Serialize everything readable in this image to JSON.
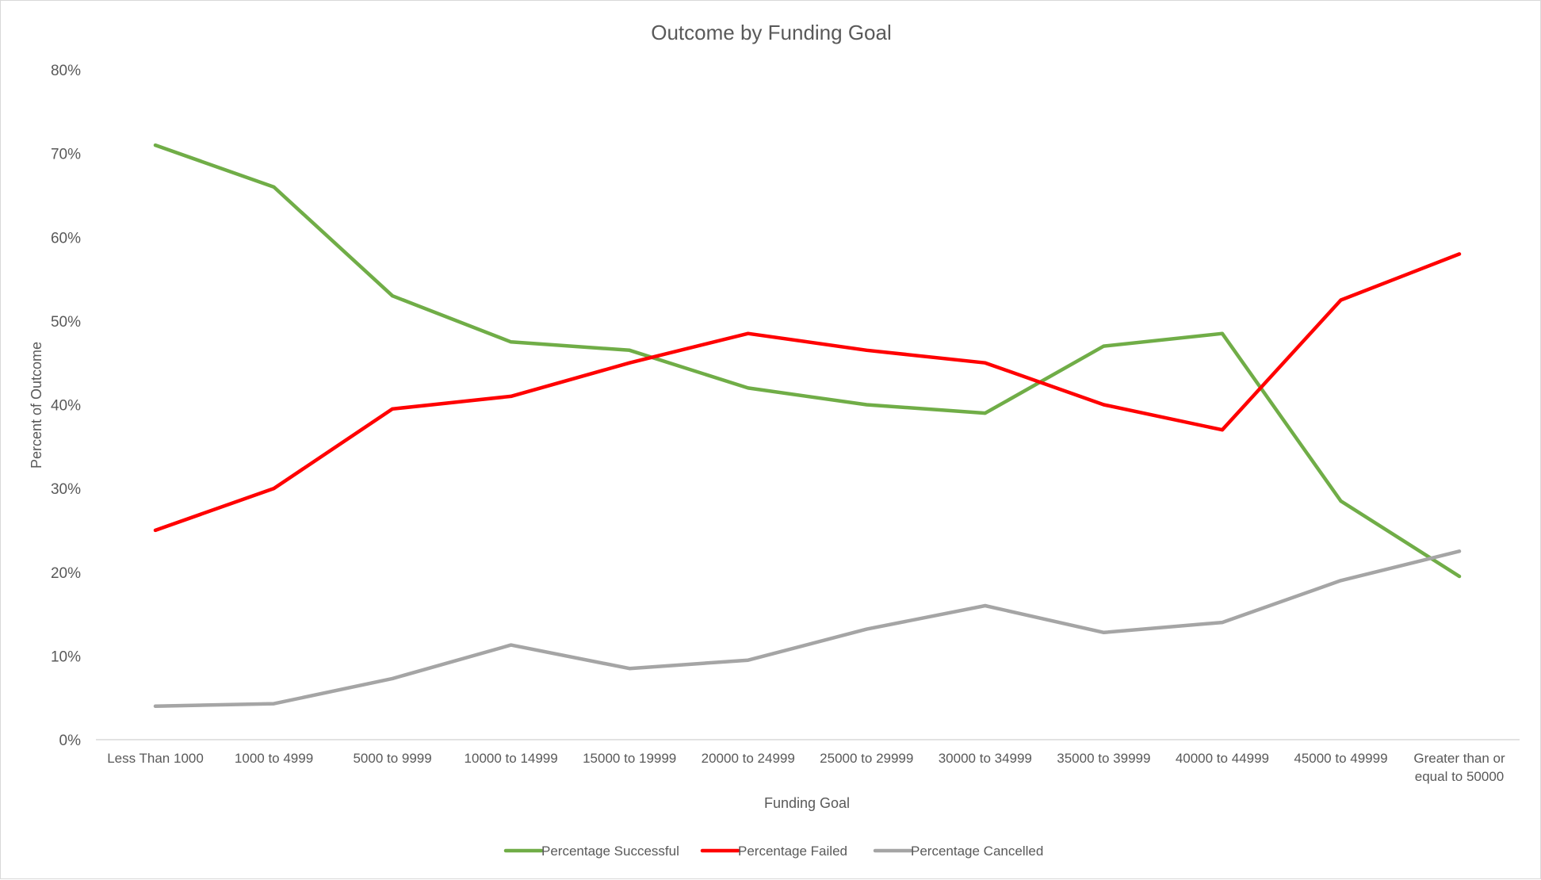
{
  "chart_data": {
    "type": "line",
    "title": "Outcome by Funding Goal",
    "xlabel": "Funding Goal",
    "ylabel": "Percent of Outcome",
    "ylim": [
      0,
      80
    ],
    "yticks": [
      "0%",
      "10%",
      "20%",
      "30%",
      "40%",
      "50%",
      "60%",
      "70%",
      "80%"
    ],
    "y_unit": "%",
    "grid": false,
    "legend_position": "bottom",
    "categories": [
      "Less Than 1000",
      "1000 to 4999",
      "5000 to 9999",
      "10000 to 14999",
      "15000 to 19999",
      "20000 to 24999",
      "25000 to 29999",
      "30000 to 34999",
      "35000 to 39999",
      "40000 to 44999",
      "45000 to 49999",
      "Greater than or equal to 50000"
    ],
    "category_lines": [
      [
        "Less Than 1000"
      ],
      [
        "1000 to 4999"
      ],
      [
        "5000 to 9999"
      ],
      [
        "10000 to 14999"
      ],
      [
        "15000 to 19999"
      ],
      [
        "20000 to 24999"
      ],
      [
        "25000 to 29999"
      ],
      [
        "30000 to 34999"
      ],
      [
        "35000 to 39999"
      ],
      [
        "40000 to 44999"
      ],
      [
        "45000 to 49999"
      ],
      [
        "Greater than or",
        "equal to 50000"
      ]
    ],
    "series": [
      {
        "name": "Percentage Successful",
        "color": "#70ad47",
        "values": [
          71,
          66,
          53,
          47.5,
          46.5,
          42,
          40,
          39,
          47,
          48.5,
          28.5,
          19.5
        ]
      },
      {
        "name": "Percentage Failed",
        "color": "#ff0000",
        "values": [
          25,
          30,
          39.5,
          41,
          45,
          48.5,
          46.5,
          45,
          40,
          37,
          52.5,
          58
        ]
      },
      {
        "name": "Percentage Cancelled",
        "color": "#a5a5a5",
        "values": [
          4,
          4.3,
          7.3,
          11.3,
          8.5,
          9.5,
          13.2,
          16,
          12.8,
          14,
          19,
          22.5
        ]
      }
    ]
  }
}
